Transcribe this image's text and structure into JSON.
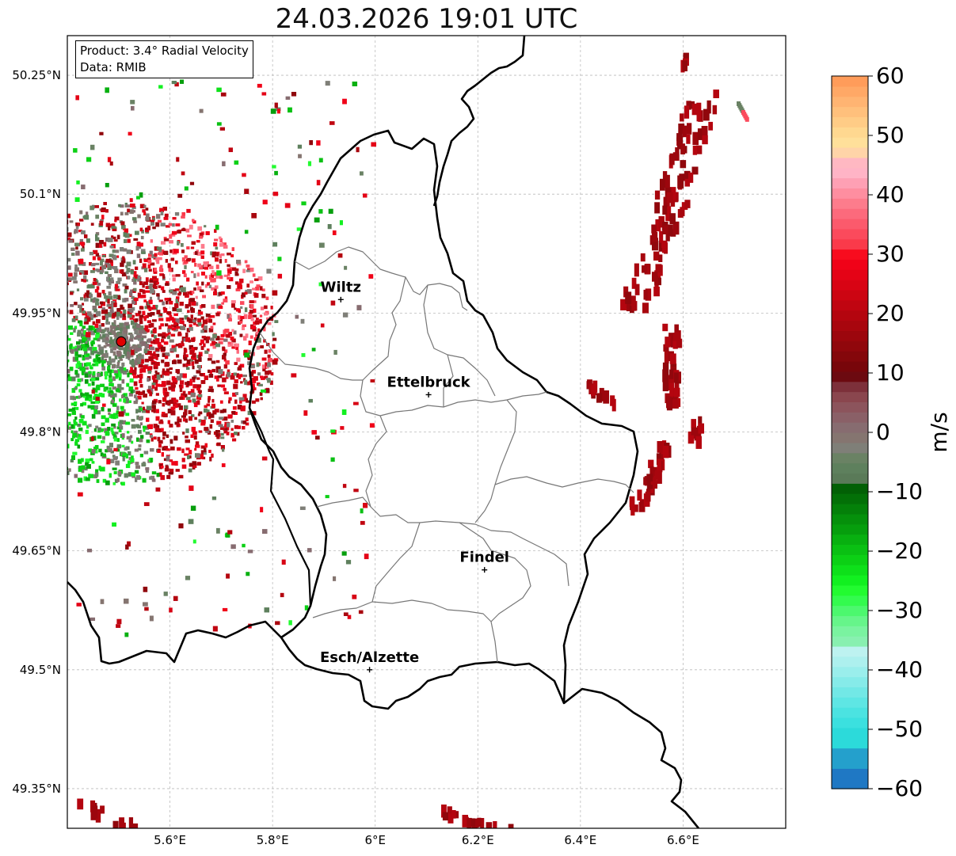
{
  "title": "24.03.2026 19:01 UTC",
  "info": {
    "product": "Product: 3.4° Radial Velocity",
    "source": "Data: RMIB"
  },
  "map": {
    "lon_range": [
      5.4,
      6.8
    ],
    "lat_range": [
      49.3,
      50.3
    ],
    "lat_ticks": [
      {
        "value": 49.35,
        "label": "49.35°N"
      },
      {
        "value": 49.5,
        "label": "49.5°N"
      },
      {
        "value": 49.65,
        "label": "49.65°N"
      },
      {
        "value": 49.8,
        "label": "49.8°N"
      },
      {
        "value": 49.95,
        "label": "49.95°N"
      },
      {
        "value": 50.1,
        "label": "50.1°N"
      },
      {
        "value": 50.25,
        "label": "50.25°N"
      }
    ],
    "lon_ticks": [
      {
        "value": 5.6,
        "label": "5.6°E"
      },
      {
        "value": 5.8,
        "label": "5.8°E"
      },
      {
        "value": 6.0,
        "label": "6°E"
      },
      {
        "value": 6.2,
        "label": "6.2°E"
      },
      {
        "value": 6.4,
        "label": "6.4°E"
      },
      {
        "value": 6.6,
        "label": "6.6°E"
      }
    ],
    "radar_site": {
      "lon": 5.505,
      "lat": 49.914
    },
    "cities": [
      {
        "name": "Wiltz",
        "lon": 5.933,
        "lat": 49.967
      },
      {
        "name": "Ettelbruck",
        "lon": 6.104,
        "lat": 49.847
      },
      {
        "name": "Findel",
        "lon": 6.213,
        "lat": 49.626
      },
      {
        "name": "Esch/Alzette",
        "lon": 5.989,
        "lat": 49.5
      }
    ]
  },
  "colorbar": {
    "label": "m/s",
    "min": -60,
    "max": 60,
    "ticks": [
      "60",
      "50",
      "40",
      "30",
      "20",
      "10",
      "0",
      "−10",
      "−20",
      "−30",
      "−40",
      "−50",
      "−60"
    ],
    "colors": [
      "#1f78c4",
      "#1f78c4",
      "#24a0cc",
      "#24a0cc",
      "#2cdada",
      "#2cdada",
      "#3be0df",
      "#4be3e1",
      "#5ee6e4",
      "#72e8e6",
      "#86ebe9",
      "#9aeeec",
      "#adf0ee",
      "#bdf2f0",
      "#88f0b0",
      "#7af3a0",
      "#66f58a",
      "#4cf86e",
      "#33fb4e",
      "#22fb30",
      "#12f020",
      "#0ee01a",
      "#0cd015",
      "#0ac013",
      "#08b010",
      "#069e0d",
      "#05900b",
      "#048009",
      "#037007",
      "#026005",
      "#5a7a58",
      "#5e805d",
      "#6a8264",
      "#7f7f78",
      "#857570",
      "#876c70",
      "#8a6067",
      "#8c545c",
      "#8a464e",
      "#7d303a",
      "#6c0a10",
      "#78060a",
      "#84070b",
      "#90070c",
      "#9c060d",
      "#a8060e",
      "#b4050f",
      "#c00511",
      "#cc0512",
      "#d80414",
      "#e40316",
      "#f00218",
      "#f80c1e",
      "#fa3a4a",
      "#fb4a5c",
      "#fb5a6c",
      "#fc6a7c",
      "#fd7c8c",
      "#fe8ea0",
      "#fea0b4",
      "#ffb4c6",
      "#ffb8c2",
      "#ffd4a8",
      "#ffe09a",
      "#ffd890",
      "#ffcc86",
      "#ffc07c",
      "#ffb472",
      "#ffa866",
      "#ff9c5a"
    ]
  }
}
